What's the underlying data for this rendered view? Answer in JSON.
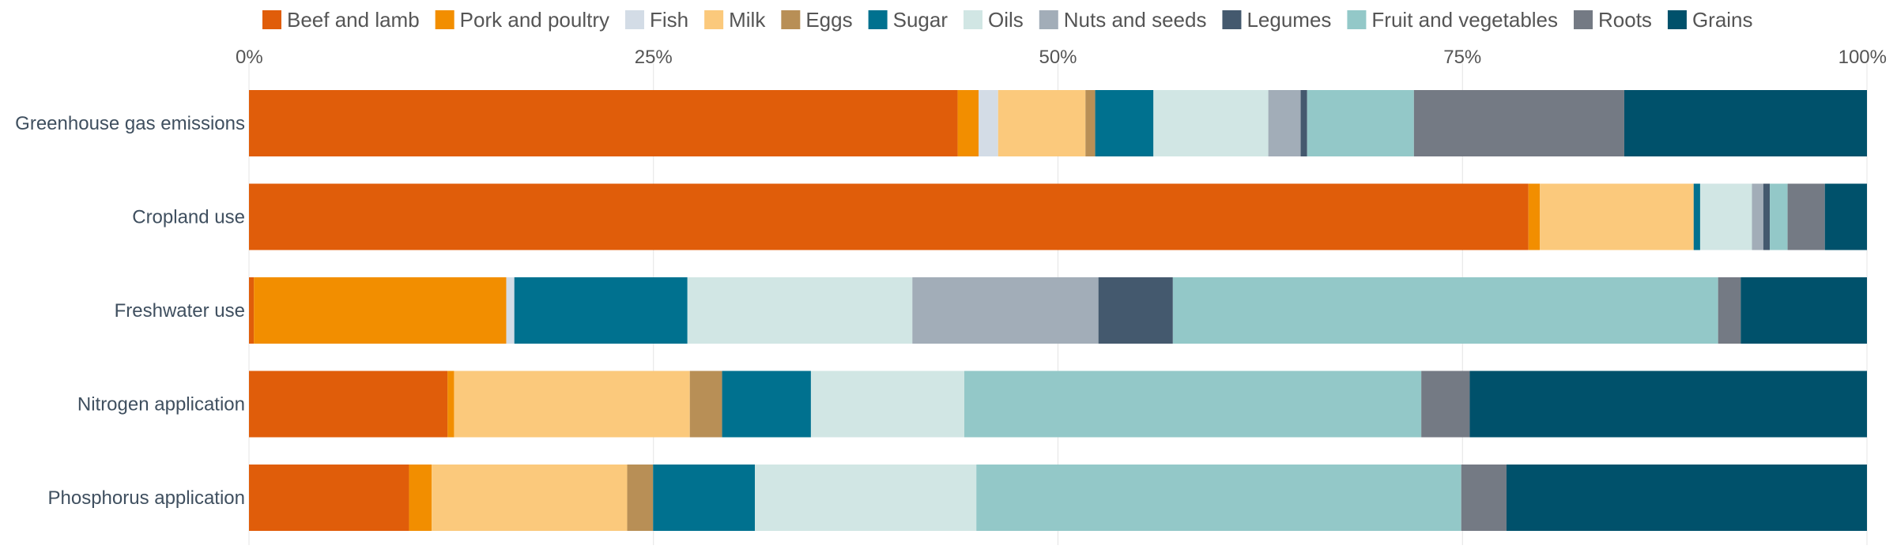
{
  "chart_data": {
    "type": "bar",
    "orientation": "horizontal",
    "stacked": true,
    "normalized": true,
    "categories": [
      "Greenhouse gas emissions",
      "Cropland use",
      "Freshwater use",
      "Nitrogen application",
      "Phosphorus application"
    ],
    "x_ticks": [
      "0%",
      "25%",
      "50%",
      "75%",
      "100%"
    ],
    "xlim": [
      0,
      100
    ],
    "grid": true,
    "legend_position": "top",
    "series": [
      {
        "name": "Beef and lamb",
        "color": "#e05d0a",
        "values": [
          43.8,
          79.0,
          0.3,
          12.3,
          9.9
        ]
      },
      {
        "name": "Pork and poultry",
        "color": "#f28e00",
        "values": [
          1.3,
          0.7,
          15.6,
          0.4,
          1.4
        ]
      },
      {
        "name": "Fish",
        "color": "#d3dce6",
        "values": [
          1.2,
          0.0,
          0.5,
          0.0,
          0.0
        ]
      },
      {
        "name": "Milk",
        "color": "#fbc97c",
        "values": [
          5.4,
          9.5,
          0.0,
          14.6,
          12.1
        ]
      },
      {
        "name": "Eggs",
        "color": "#b88f56",
        "values": [
          0.6,
          0.0,
          0.0,
          2.0,
          1.6
        ]
      },
      {
        "name": "Sugar",
        "color": "#00718f",
        "values": [
          3.6,
          0.4,
          10.7,
          5.5,
          6.3
        ]
      },
      {
        "name": "Oils",
        "color": "#d1e6e4",
        "values": [
          7.1,
          3.2,
          13.9,
          9.5,
          13.7
        ]
      },
      {
        "name": "Nuts and seeds",
        "color": "#a2adb8",
        "values": [
          2.0,
          0.7,
          11.5,
          0.0,
          0.0
        ]
      },
      {
        "name": "Legumes",
        "color": "#44596e",
        "values": [
          0.4,
          0.4,
          4.6,
          0.0,
          0.0
        ]
      },
      {
        "name": "Fruit and vegetables",
        "color": "#93c8c8",
        "values": [
          6.6,
          1.1,
          33.7,
          28.3,
          30.0
        ]
      },
      {
        "name": "Roots",
        "color": "#747a84",
        "values": [
          13.0,
          2.3,
          1.4,
          3.0,
          2.8
        ]
      },
      {
        "name": "Grains",
        "color": "#00516b",
        "values": [
          15.0,
          2.6,
          7.8,
          24.6,
          22.3
        ]
      }
    ]
  }
}
